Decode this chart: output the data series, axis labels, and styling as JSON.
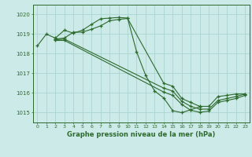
{
  "title": "Graphe pression niveau de la mer (hPa)",
  "background_color": "#cceae7",
  "grid_color": "#aad4d0",
  "line_color": "#2d6a2d",
  "border_color": "#2d6a2d",
  "xlim": [
    -0.5,
    23.5
  ],
  "ylim": [
    1014.5,
    1020.5
  ],
  "yticks": [
    1015,
    1016,
    1017,
    1018,
    1019,
    1020
  ],
  "xticks": [
    0,
    1,
    2,
    3,
    4,
    5,
    6,
    7,
    8,
    9,
    10,
    11,
    12,
    13,
    14,
    15,
    16,
    17,
    18,
    19,
    20,
    21,
    22,
    23
  ],
  "xtick_labels": [
    "0",
    "1",
    "2",
    "3",
    "4",
    "5",
    "6",
    "7",
    "8",
    "9",
    "10",
    "11",
    "12",
    "13",
    "14",
    "15",
    "16",
    "17",
    "18",
    "19",
    "20",
    "21",
    "22",
    "23"
  ],
  "series": [
    {
      "x": [
        0,
        1,
        2,
        3,
        4,
        5,
        6,
        7,
        8,
        9,
        10,
        11,
        12,
        13,
        14,
        15,
        16,
        17,
        18
      ],
      "y": [
        1018.4,
        1019.0,
        1018.8,
        1019.2,
        1019.05,
        1019.2,
        1019.5,
        1019.78,
        1019.82,
        1019.85,
        1019.82,
        1018.1,
        1016.9,
        1016.1,
        1015.75,
        1015.1,
        1015.0,
        1015.15,
        1015.3
      ]
    },
    {
      "x": [
        2,
        3,
        4,
        5,
        6,
        7,
        8,
        9,
        10,
        14,
        15,
        16,
        17,
        18,
        19,
        20,
        21,
        22,
        23
      ],
      "y": [
        1018.75,
        1018.8,
        1019.1,
        1019.1,
        1019.25,
        1019.42,
        1019.68,
        1019.75,
        1019.8,
        1016.5,
        1016.35,
        1015.72,
        1015.52,
        1015.32,
        1015.32,
        1015.82,
        1015.88,
        1015.95,
        1015.95
      ]
    },
    {
      "x": [
        2,
        3,
        14,
        15,
        16,
        17,
        18,
        19,
        20,
        21,
        22,
        23
      ],
      "y": [
        1018.72,
        1018.75,
        1016.25,
        1016.1,
        1015.58,
        1015.32,
        1015.18,
        1015.18,
        1015.62,
        1015.72,
        1015.82,
        1015.95
      ]
    },
    {
      "x": [
        2,
        3,
        14,
        15,
        16,
        17,
        18,
        19,
        20,
        21,
        22,
        23
      ],
      "y": [
        1018.68,
        1018.68,
        1016.05,
        1015.88,
        1015.42,
        1015.12,
        1015.02,
        1015.08,
        1015.52,
        1015.62,
        1015.72,
        1015.88
      ]
    }
  ]
}
